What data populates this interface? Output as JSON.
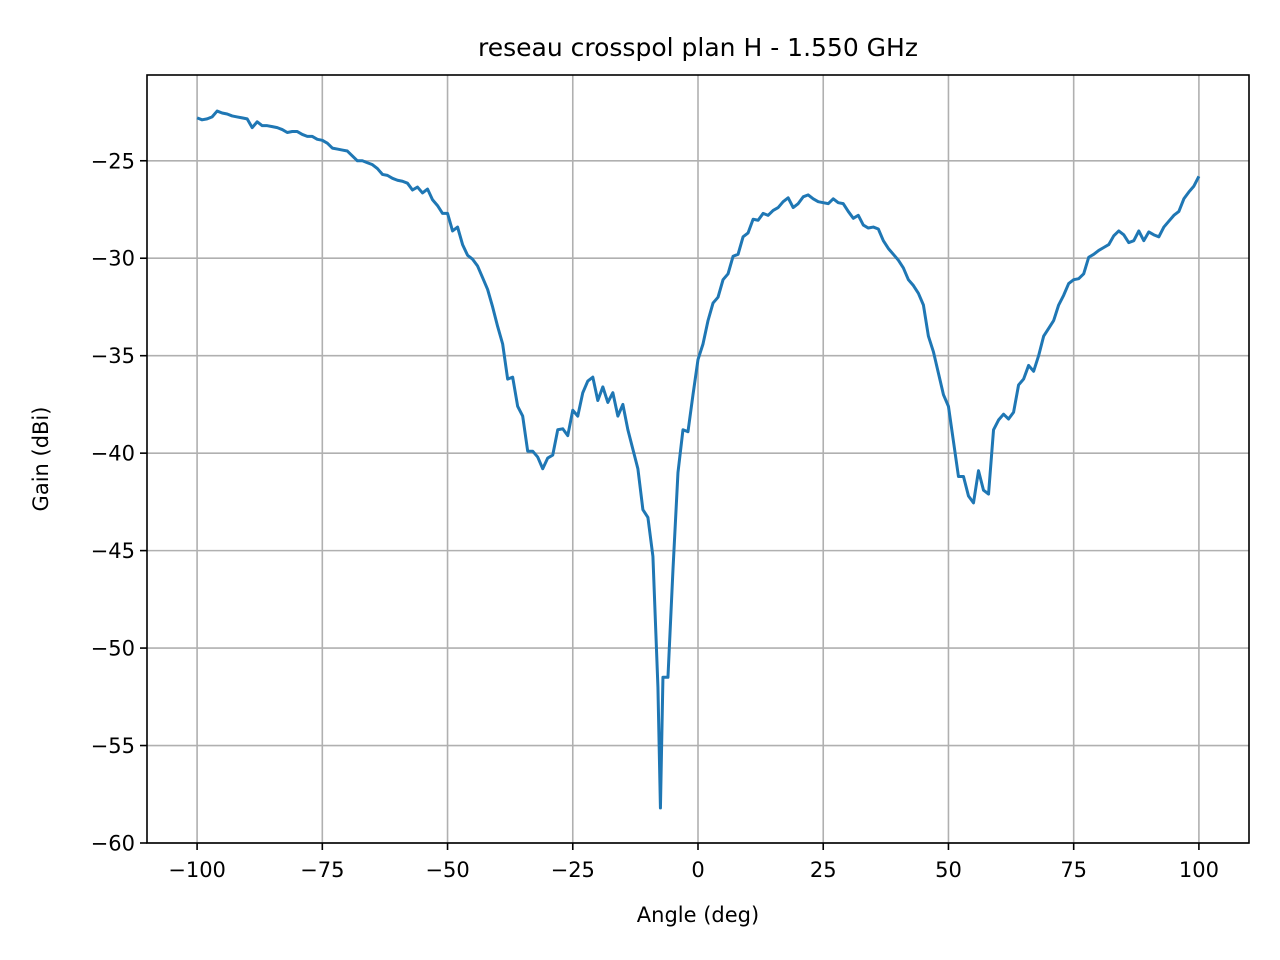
{
  "chart_data": {
    "type": "line",
    "title": "reseau crosspol plan H - 1.550 GHz",
    "xlabel": "Angle (deg)",
    "ylabel": "Gain (dBi)",
    "xlim": [
      -110,
      110
    ],
    "ylim": [
      -60,
      -20.6
    ],
    "xticks": [
      -100,
      -75,
      -50,
      -25,
      0,
      25,
      50,
      75,
      100
    ],
    "yticks": [
      -25,
      -30,
      -35,
      -40,
      -45,
      -50,
      -55,
      -60
    ],
    "xtick_labels": [
      "−100",
      "−75",
      "−50",
      "−25",
      "0",
      "25",
      "50",
      "75",
      "100"
    ],
    "ytick_labels": [
      "−25",
      "−30",
      "−35",
      "−40",
      "−45",
      "−50",
      "−55",
      "−60"
    ],
    "grid": true,
    "series": [
      {
        "color": "#1f77b4",
        "points": [
          [
            -100,
            -22.8
          ],
          [
            -99,
            -22.9
          ],
          [
            -98,
            -22.85
          ],
          [
            -97,
            -22.75
          ],
          [
            -96,
            -22.45
          ],
          [
            -95,
            -22.55
          ],
          [
            -94,
            -22.6
          ],
          [
            -93,
            -22.7
          ],
          [
            -92,
            -22.75
          ],
          [
            -91,
            -22.8
          ],
          [
            -90,
            -22.85
          ],
          [
            -89,
            -23.3
          ],
          [
            -88,
            -23.0
          ],
          [
            -87,
            -23.2
          ],
          [
            -86,
            -23.2
          ],
          [
            -85,
            -23.25
          ],
          [
            -84,
            -23.3
          ],
          [
            -83,
            -23.4
          ],
          [
            -82,
            -23.55
          ],
          [
            -81,
            -23.5
          ],
          [
            -80,
            -23.5
          ],
          [
            -79,
            -23.65
          ],
          [
            -78,
            -23.75
          ],
          [
            -77,
            -23.75
          ],
          [
            -76,
            -23.9
          ],
          [
            -75,
            -23.95
          ],
          [
            -74,
            -24.1
          ],
          [
            -73,
            -24.35
          ],
          [
            -72,
            -24.4
          ],
          [
            -71,
            -24.45
          ],
          [
            -70,
            -24.5
          ],
          [
            -69,
            -24.75
          ],
          [
            -68,
            -25.0
          ],
          [
            -67,
            -25.0
          ],
          [
            -66,
            -25.1
          ],
          [
            -65,
            -25.2
          ],
          [
            -64,
            -25.4
          ],
          [
            -63,
            -25.7
          ],
          [
            -62,
            -25.75
          ],
          [
            -61,
            -25.9
          ],
          [
            -60,
            -26.0
          ],
          [
            -59,
            -26.05
          ],
          [
            -58,
            -26.15
          ],
          [
            -57,
            -26.5
          ],
          [
            -56,
            -26.35
          ],
          [
            -55,
            -26.65
          ],
          [
            -54,
            -26.45
          ],
          [
            -53,
            -27.0
          ],
          [
            -52,
            -27.3
          ],
          [
            -51,
            -27.7
          ],
          [
            -50,
            -27.7
          ],
          [
            -49,
            -28.6
          ],
          [
            -48,
            -28.4
          ],
          [
            -47,
            -29.3
          ],
          [
            -46,
            -29.85
          ],
          [
            -45,
            -30.05
          ],
          [
            -44,
            -30.4
          ],
          [
            -43,
            -31.0
          ],
          [
            -42,
            -31.6
          ],
          [
            -41,
            -32.5
          ],
          [
            -40,
            -33.5
          ],
          [
            -39,
            -34.4
          ],
          [
            -38,
            -36.2
          ],
          [
            -37,
            -36.1
          ],
          [
            -36,
            -37.6
          ],
          [
            -35,
            -38.1
          ],
          [
            -34,
            -39.9
          ],
          [
            -33,
            -39.9
          ],
          [
            -32,
            -40.2
          ],
          [
            -31,
            -40.8
          ],
          [
            -30,
            -40.25
          ],
          [
            -29,
            -40.1
          ],
          [
            -28,
            -38.8
          ],
          [
            -27,
            -38.75
          ],
          [
            -26,
            -39.1
          ],
          [
            -25,
            -37.8
          ],
          [
            -24,
            -38.1
          ],
          [
            -23,
            -36.9
          ],
          [
            -22,
            -36.3
          ],
          [
            -21,
            -36.1
          ],
          [
            -20,
            -37.3
          ],
          [
            -19,
            -36.6
          ],
          [
            -18,
            -37.4
          ],
          [
            -17,
            -36.9
          ],
          [
            -16,
            -38.1
          ],
          [
            -15,
            -37.5
          ],
          [
            -14,
            -38.8
          ],
          [
            -13,
            -39.8
          ],
          [
            -12,
            -40.8
          ],
          [
            -11,
            -42.9
          ],
          [
            -10,
            -43.3
          ],
          [
            -9,
            -45.3
          ],
          [
            -8,
            -52.0
          ],
          [
            -7.5,
            -58.2
          ],
          [
            -7,
            -51.5
          ],
          [
            -6,
            -51.5
          ],
          [
            -5,
            -46.0
          ],
          [
            -4,
            -41.0
          ],
          [
            -3,
            -38.8
          ],
          [
            -2,
            -38.9
          ],
          [
            -1,
            -37.0
          ],
          [
            0,
            -35.2
          ],
          [
            1,
            -34.4
          ],
          [
            2,
            -33.2
          ],
          [
            3,
            -32.3
          ],
          [
            4,
            -32.0
          ],
          [
            5,
            -31.1
          ],
          [
            6,
            -30.8
          ],
          [
            7,
            -29.9
          ],
          [
            8,
            -29.8
          ],
          [
            9,
            -28.9
          ],
          [
            10,
            -28.7
          ],
          [
            11,
            -28.0
          ],
          [
            12,
            -28.05
          ],
          [
            13,
            -27.7
          ],
          [
            14,
            -27.8
          ],
          [
            15,
            -27.55
          ],
          [
            16,
            -27.4
          ],
          [
            17,
            -27.1
          ],
          [
            18,
            -26.9
          ],
          [
            19,
            -27.4
          ],
          [
            20,
            -27.2
          ],
          [
            21,
            -26.85
          ],
          [
            22,
            -26.75
          ],
          [
            23,
            -26.95
          ],
          [
            24,
            -27.1
          ],
          [
            25,
            -27.15
          ],
          [
            26,
            -27.2
          ],
          [
            27,
            -26.95
          ],
          [
            28,
            -27.15
          ],
          [
            29,
            -27.2
          ],
          [
            30,
            -27.6
          ],
          [
            31,
            -27.95
          ],
          [
            32,
            -27.8
          ],
          [
            33,
            -28.3
          ],
          [
            34,
            -28.45
          ],
          [
            35,
            -28.4
          ],
          [
            36,
            -28.5
          ],
          [
            37,
            -29.1
          ],
          [
            38,
            -29.5
          ],
          [
            39,
            -29.8
          ],
          [
            40,
            -30.1
          ],
          [
            41,
            -30.5
          ],
          [
            42,
            -31.1
          ],
          [
            43,
            -31.4
          ],
          [
            44,
            -31.8
          ],
          [
            45,
            -32.4
          ],
          [
            46,
            -34.0
          ],
          [
            47,
            -34.8
          ],
          [
            48,
            -35.9
          ],
          [
            49,
            -37.0
          ],
          [
            50,
            -37.6
          ],
          [
            51,
            -39.4
          ],
          [
            52,
            -41.2
          ],
          [
            53,
            -41.2
          ],
          [
            54,
            -42.2
          ],
          [
            55,
            -42.55
          ],
          [
            56,
            -40.9
          ],
          [
            57,
            -41.9
          ],
          [
            58,
            -42.1
          ],
          [
            59,
            -38.8
          ],
          [
            60,
            -38.3
          ],
          [
            61,
            -38.0
          ],
          [
            62,
            -38.25
          ],
          [
            63,
            -37.9
          ],
          [
            64,
            -36.5
          ],
          [
            65,
            -36.2
          ],
          [
            66,
            -35.5
          ],
          [
            67,
            -35.8
          ],
          [
            68,
            -35.0
          ],
          [
            69,
            -34.0
          ],
          [
            70,
            -33.6
          ],
          [
            71,
            -33.2
          ],
          [
            72,
            -32.4
          ],
          [
            73,
            -31.9
          ],
          [
            74,
            -31.3
          ],
          [
            75,
            -31.1
          ],
          [
            76,
            -31.05
          ],
          [
            77,
            -30.8
          ],
          [
            78,
            -29.95
          ],
          [
            79,
            -29.8
          ],
          [
            80,
            -29.6
          ],
          [
            81,
            -29.45
          ],
          [
            82,
            -29.3
          ],
          [
            83,
            -28.85
          ],
          [
            84,
            -28.6
          ],
          [
            85,
            -28.8
          ],
          [
            86,
            -29.2
          ],
          [
            87,
            -29.1
          ],
          [
            88,
            -28.6
          ],
          [
            89,
            -29.1
          ],
          [
            90,
            -28.65
          ],
          [
            91,
            -28.8
          ],
          [
            92,
            -28.9
          ],
          [
            93,
            -28.4
          ],
          [
            94,
            -28.1
          ],
          [
            95,
            -27.8
          ],
          [
            96,
            -27.6
          ],
          [
            97,
            -26.95
          ],
          [
            98,
            -26.6
          ],
          [
            99,
            -26.3
          ],
          [
            100,
            -25.8
          ]
        ]
      }
    ]
  }
}
